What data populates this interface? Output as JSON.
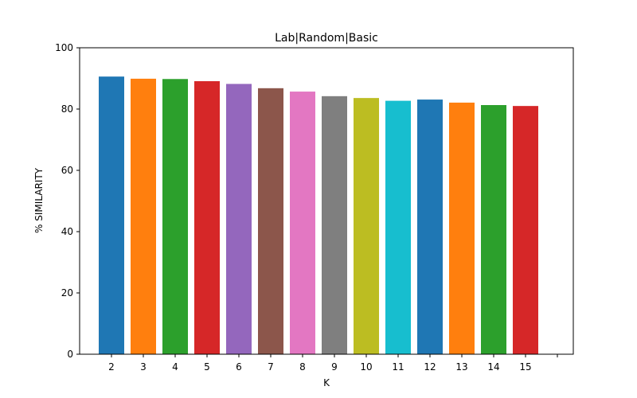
{
  "chart_data": {
    "type": "bar",
    "title": "Lab|Random|Basic",
    "xlabel": "K",
    "ylabel": "% SIMILARITY",
    "categories": [
      "2",
      "3",
      "4",
      "5",
      "6",
      "7",
      "8",
      "9",
      "10",
      "11",
      "12",
      "13",
      "14",
      "15"
    ],
    "values": [
      90.6,
      89.9,
      89.8,
      89.1,
      88.2,
      86.8,
      85.7,
      84.2,
      83.6,
      82.7,
      83.1,
      82.1,
      81.3,
      81.0
    ],
    "ylim": [
      0,
      100
    ],
    "xlim": [
      1.0,
      16.5
    ],
    "yticks": [
      "0",
      "20",
      "40",
      "60",
      "80",
      "100"
    ],
    "grid": false,
    "legend": "none",
    "colors": [
      "#1f77b4",
      "#ff7f0e",
      "#2ca02c",
      "#d62728",
      "#9467bd",
      "#8c564b",
      "#e377c2",
      "#7f7f7f",
      "#bcbd22",
      "#17becf",
      "#1f77b4",
      "#ff7f0e",
      "#2ca02c",
      "#d62728"
    ]
  }
}
